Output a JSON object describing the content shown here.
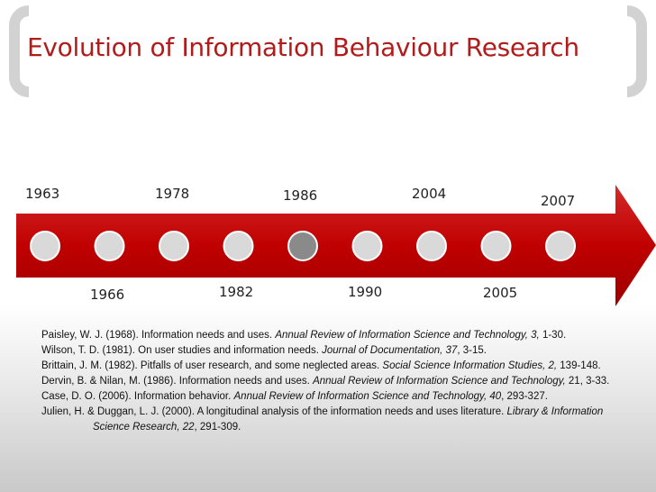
{
  "title": "Evolution of Information Behaviour Research",
  "timeline": {
    "top_years": [
      "1963",
      "1978",
      "1986",
      "2004",
      "2007"
    ],
    "bottom_years": [
      "1966",
      "1982",
      "1990",
      "2005"
    ],
    "highlighted_node": "1986",
    "colors": {
      "arrow": "#c00000",
      "node": "#d9d9d9",
      "node_highlight": "#8a8a8a",
      "title": "#b01c1c",
      "bracket": "#d2d2d2"
    }
  },
  "references": [
    {
      "parts": [
        "Paisley, W. J. (1968). Information needs and uses. ",
        "Annual Review of Information Science and Technology, 3,",
        " 1-30."
      ]
    },
    {
      "parts": [
        "Wilson, T. D. (1981). On user studies and information needs. ",
        "Journal of Documentation, 37",
        ", 3-15."
      ]
    },
    {
      "parts": [
        "Brittain, J. M. (1982). Pitfalls of user research, and some neglected areas. ",
        "Social Science Information Studies, 2,",
        " 139-148."
      ]
    },
    {
      "parts": [
        "Dervin, B. & Nilan, M. (1986). Information needs and uses. ",
        "Annual Review of Information Science and Technology,",
        " 21, 3-33."
      ]
    },
    {
      "parts": [
        "Case, D. O. (2006). Information behavior. ",
        "Annual Review of Information Science and Technology, 40",
        ", 293-327."
      ]
    },
    {
      "parts": [
        "Julien, H. & Duggan, L. J. (2000). A longitudinal analysis of the information needs and uses literature. ",
        "Library & Information Science Research, 22",
        ", 291-309."
      ]
    }
  ]
}
